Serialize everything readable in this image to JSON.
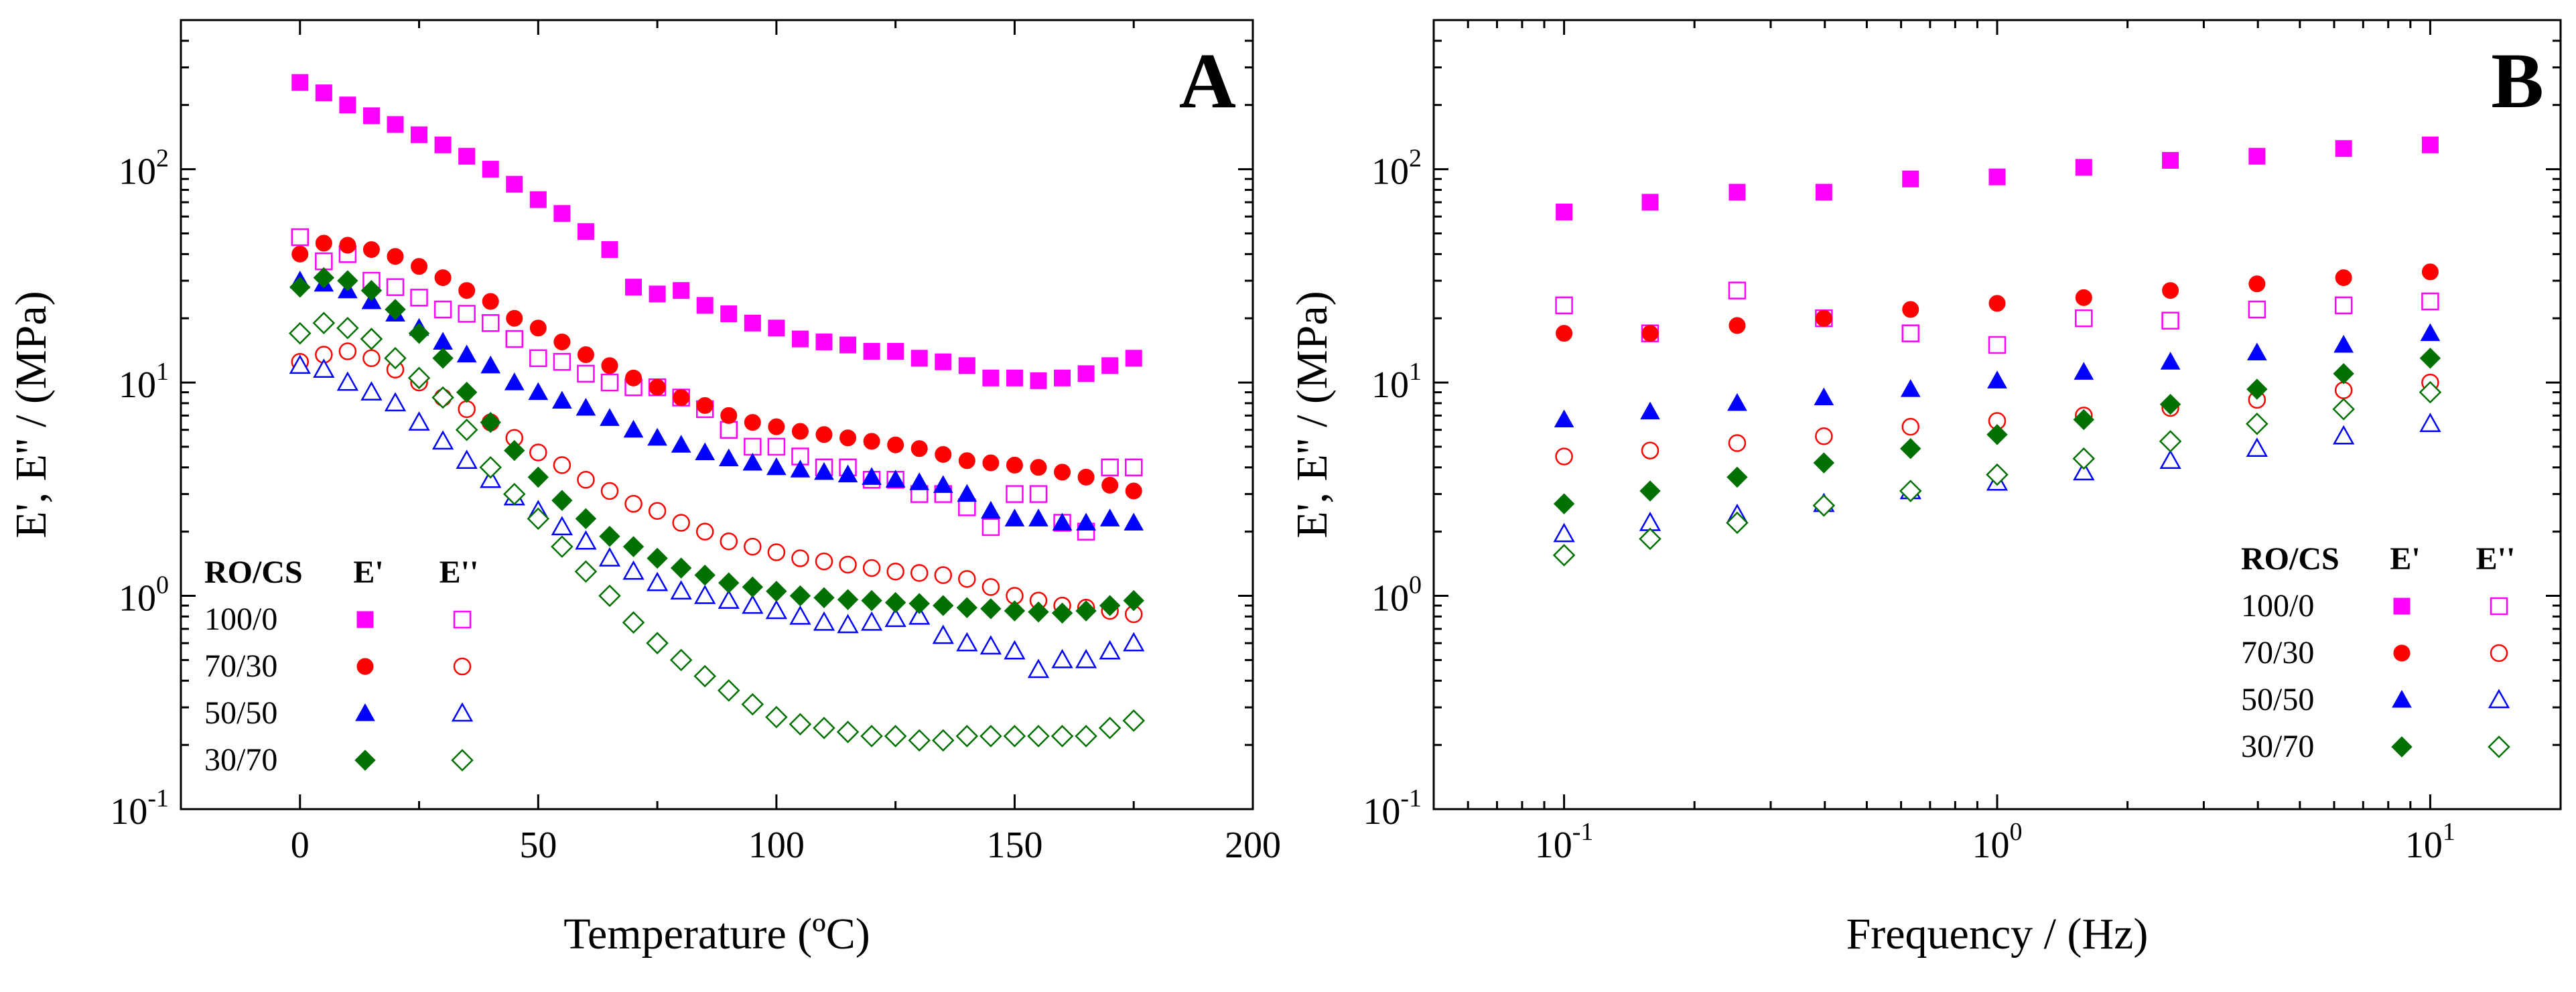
{
  "chart_data": [
    {
      "panel": "A",
      "type": "scatter",
      "xscale": "linear",
      "yscale": "log",
      "xlabel": "Temperature (ºC)",
      "ylabel": "E', E'' / (MPa)",
      "xlim": [
        -25,
        200
      ],
      "ylim": [
        0.1,
        500
      ],
      "xticks": [
        "0",
        "50",
        "100",
        "150",
        "200"
      ],
      "xtick_values": [
        0,
        50,
        100,
        150,
        200
      ],
      "ytick_values": [
        0.1,
        1,
        10,
        100
      ],
      "ytick_labels": [
        {
          "base": "10",
          "exp": "-1"
        },
        {
          "base": "10",
          "exp": "0"
        },
        {
          "base": "10",
          "exp": "1"
        },
        {
          "base": "10",
          "exp": "2"
        }
      ],
      "legend": {
        "position": "bottom-left",
        "header": "RO/CS",
        "col1": "E'",
        "col2": "E''",
        "rows": [
          "100/0",
          "70/30",
          "50/50",
          "30/70"
        ]
      },
      "series": [
        {
          "name": "100/0 E'",
          "color": "#ff00ff",
          "marker": "square",
          "filled": true,
          "x": [
            0,
            5,
            10,
            15,
            20,
            25,
            30,
            35,
            40,
            45,
            50,
            55,
            60,
            65,
            70,
            75,
            80,
            85,
            90,
            95,
            100,
            105,
            110,
            115,
            120,
            125,
            130,
            135,
            140,
            145,
            150,
            155,
            160,
            165,
            170,
            175
          ],
          "y": [
            255,
            228,
            200,
            178,
            162,
            145,
            130,
            115,
            100,
            85,
            72,
            62,
            51,
            42,
            28,
            26,
            27,
            23,
            21,
            19,
            18,
            16,
            15.5,
            15,
            14,
            14,
            13,
            12.5,
            12,
            10.5,
            10.5,
            10.2,
            10.5,
            11,
            12,
            13
          ]
        },
        {
          "name": "100/0 E''",
          "color": "#ff00ff",
          "marker": "square",
          "filled": false,
          "x": [
            0,
            5,
            10,
            15,
            20,
            25,
            30,
            35,
            40,
            45,
            50,
            55,
            60,
            65,
            70,
            75,
            80,
            85,
            90,
            95,
            100,
            105,
            110,
            115,
            120,
            125,
            130,
            135,
            140,
            145,
            150,
            155,
            160,
            165,
            170,
            175
          ],
          "y": [
            48,
            37,
            40,
            30,
            28,
            25,
            22,
            21,
            19,
            16,
            13,
            12.5,
            11,
            10,
            9.5,
            9.5,
            8.5,
            7.5,
            6,
            5,
            5,
            4.5,
            4,
            4,
            3.5,
            3.5,
            3,
            3,
            2.6,
            2.1,
            3,
            3,
            2.2,
            2,
            4,
            4
          ]
        },
        {
          "name": "70/30 E'",
          "color": "#ff0000",
          "marker": "circle",
          "filled": true,
          "x": [
            0,
            5,
            10,
            15,
            20,
            25,
            30,
            35,
            40,
            45,
            50,
            55,
            60,
            65,
            70,
            75,
            80,
            85,
            90,
            95,
            100,
            105,
            110,
            115,
            120,
            125,
            130,
            135,
            140,
            145,
            150,
            155,
            160,
            165,
            170,
            175
          ],
          "y": [
            40,
            45,
            44,
            42,
            39,
            35,
            31,
            27,
            24,
            20,
            18,
            15.5,
            13.5,
            12,
            10.5,
            9.5,
            8.5,
            7.8,
            7,
            6.5,
            6.2,
            5.9,
            5.7,
            5.5,
            5.3,
            5.1,
            4.9,
            4.6,
            4.3,
            4.2,
            4.1,
            4,
            3.8,
            3.6,
            3.3,
            3.1
          ]
        },
        {
          "name": "70/30 E''",
          "color": "#ff0000",
          "marker": "circle",
          "filled": false,
          "x": [
            0,
            5,
            10,
            15,
            20,
            25,
            30,
            35,
            40,
            45,
            50,
            55,
            60,
            65,
            70,
            75,
            80,
            85,
            90,
            95,
            100,
            105,
            110,
            115,
            120,
            125,
            130,
            135,
            140,
            145,
            150,
            155,
            160,
            165,
            170,
            175
          ],
          "y": [
            12.5,
            13.5,
            14,
            13,
            11.5,
            10,
            8.5,
            7.5,
            6.5,
            5.5,
            4.7,
            4.1,
            3.5,
            3.1,
            2.7,
            2.5,
            2.2,
            2,
            1.8,
            1.7,
            1.6,
            1.5,
            1.45,
            1.4,
            1.35,
            1.3,
            1.28,
            1.25,
            1.2,
            1.1,
            1,
            0.95,
            0.9,
            0.88,
            0.85,
            0.82
          ]
        },
        {
          "name": "50/50 E'",
          "color": "#0000ff",
          "marker": "triangle",
          "filled": true,
          "x": [
            0,
            5,
            10,
            15,
            20,
            25,
            30,
            35,
            40,
            45,
            50,
            55,
            60,
            65,
            70,
            75,
            80,
            85,
            90,
            95,
            100,
            105,
            110,
            115,
            120,
            125,
            130,
            135,
            140,
            145,
            150,
            155,
            160,
            165,
            170,
            175
          ],
          "y": [
            30,
            29,
            27,
            24,
            21,
            18,
            15.5,
            13.5,
            12,
            10,
            9,
            8.2,
            7.6,
            6.8,
            6,
            5.5,
            5.1,
            4.7,
            4.4,
            4.2,
            4,
            3.9,
            3.8,
            3.7,
            3.6,
            3.5,
            3.4,
            3.3,
            3,
            2.5,
            2.3,
            2.3,
            2.2,
            2.2,
            2.3,
            2.2
          ]
        },
        {
          "name": "50/50 E''",
          "color": "#0000ff",
          "marker": "triangle",
          "filled": false,
          "x": [
            0,
            5,
            10,
            15,
            20,
            25,
            30,
            35,
            40,
            45,
            50,
            55,
            60,
            65,
            70,
            75,
            80,
            85,
            90,
            95,
            100,
            105,
            110,
            115,
            120,
            125,
            130,
            135,
            140,
            145,
            150,
            155,
            160,
            165,
            170,
            175
          ],
          "y": [
            12,
            11.5,
            10,
            9,
            8,
            6.5,
            5.3,
            4.3,
            3.5,
            2.9,
            2.5,
            2.1,
            1.8,
            1.5,
            1.3,
            1.15,
            1.05,
            1,
            0.95,
            0.9,
            0.85,
            0.8,
            0.75,
            0.73,
            0.75,
            0.78,
            0.8,
            0.65,
            0.6,
            0.58,
            0.55,
            0.45,
            0.5,
            0.5,
            0.55,
            0.6
          ]
        },
        {
          "name": "30/70 E'",
          "color": "#007000",
          "marker": "diamond",
          "filled": true,
          "x": [
            0,
            5,
            10,
            15,
            20,
            25,
            30,
            35,
            40,
            45,
            50,
            55,
            60,
            65,
            70,
            75,
            80,
            85,
            90,
            95,
            100,
            105,
            110,
            115,
            120,
            125,
            130,
            135,
            140,
            145,
            150,
            155,
            160,
            165,
            170,
            175
          ],
          "y": [
            28,
            31,
            30,
            27,
            22,
            17,
            13,
            9,
            6.5,
            4.8,
            3.6,
            2.8,
            2.3,
            1.9,
            1.7,
            1.5,
            1.35,
            1.25,
            1.15,
            1.1,
            1.05,
            1,
            0.98,
            0.96,
            0.95,
            0.93,
            0.92,
            0.9,
            0.88,
            0.87,
            0.85,
            0.84,
            0.83,
            0.85,
            0.9,
            0.95
          ]
        },
        {
          "name": "30/70 E''",
          "color": "#007000",
          "marker": "diamond",
          "filled": false,
          "x": [
            0,
            5,
            10,
            15,
            20,
            25,
            30,
            35,
            40,
            45,
            50,
            55,
            60,
            65,
            70,
            75,
            80,
            85,
            90,
            95,
            100,
            105,
            110,
            115,
            120,
            125,
            130,
            135,
            140,
            145,
            150,
            155,
            160,
            165,
            170,
            175
          ],
          "y": [
            17,
            19,
            18,
            16,
            13,
            10.5,
            8.5,
            6,
            4,
            3,
            2.3,
            1.7,
            1.3,
            1,
            0.75,
            0.6,
            0.5,
            0.42,
            0.36,
            0.31,
            0.27,
            0.25,
            0.24,
            0.23,
            0.22,
            0.22,
            0.21,
            0.21,
            0.22,
            0.22,
            0.22,
            0.22,
            0.22,
            0.22,
            0.24,
            0.26
          ]
        }
      ]
    },
    {
      "panel": "B",
      "type": "scatter",
      "xscale": "log",
      "yscale": "log",
      "xlabel": "Frequency / (Hz)",
      "ylabel": "E', E'' / (MPa)",
      "xlim": [
        0.05,
        20
      ],
      "ylim": [
        0.1,
        500
      ],
      "xtick_values": [
        0.1,
        1,
        10
      ],
      "xtick_labels": [
        {
          "base": "10",
          "exp": "-1"
        },
        {
          "base": "10",
          "exp": "0"
        },
        {
          "base": "10",
          "exp": "1"
        }
      ],
      "ytick_values": [
        0.1,
        1,
        10,
        100
      ],
      "ytick_labels": [
        {
          "base": "10",
          "exp": "-1"
        },
        {
          "base": "10",
          "exp": "0"
        },
        {
          "base": "10",
          "exp": "1"
        },
        {
          "base": "10",
          "exp": "2"
        }
      ],
      "legend": {
        "position": "bottom-right",
        "header": "RO/CS",
        "col1": "E'",
        "col2": "E''",
        "rows": [
          "100/0",
          "70/30",
          "50/50",
          "30/70"
        ]
      },
      "series": [
        {
          "name": "100/0 E'",
          "color": "#ff00ff",
          "marker": "square",
          "filled": true,
          "x": [
            0.1,
            0.158,
            0.251,
            0.398,
            0.631,
            1,
            1.585,
            2.512,
            3.981,
            6.31,
            10
          ],
          "y": [
            63,
            70,
            78,
            78,
            90,
            92,
            102,
            110,
            115,
            125,
            130
          ]
        },
        {
          "name": "100/0 E''",
          "color": "#ff00ff",
          "marker": "square",
          "filled": false,
          "x": [
            0.1,
            0.158,
            0.251,
            0.398,
            0.631,
            1,
            1.585,
            2.512,
            3.981,
            6.31,
            10
          ],
          "y": [
            23,
            17,
            27,
            20,
            17,
            15,
            20,
            19.5,
            22,
            23,
            24
          ]
        },
        {
          "name": "70/30 E'",
          "color": "#ff0000",
          "marker": "circle",
          "filled": true,
          "x": [
            0.1,
            0.158,
            0.251,
            0.398,
            0.631,
            1,
            1.585,
            2.512,
            3.981,
            6.31,
            10
          ],
          "y": [
            17,
            17,
            18.5,
            20,
            22,
            23.5,
            25,
            27,
            29,
            31,
            33
          ]
        },
        {
          "name": "70/30 E''",
          "color": "#ff0000",
          "marker": "circle",
          "filled": false,
          "x": [
            0.1,
            0.158,
            0.251,
            0.398,
            0.631,
            1,
            1.585,
            2.512,
            3.981,
            6.31,
            10
          ],
          "y": [
            4.5,
            4.8,
            5.2,
            5.6,
            6.2,
            6.6,
            7,
            7.6,
            8.3,
            9.2,
            10
          ]
        },
        {
          "name": "50/50 E'",
          "color": "#0000ff",
          "marker": "triangle",
          "filled": true,
          "x": [
            0.1,
            0.158,
            0.251,
            0.398,
            0.631,
            1,
            1.585,
            2.512,
            3.981,
            6.31,
            10
          ],
          "y": [
            6.7,
            7.3,
            8,
            8.5,
            9.3,
            10.2,
            11.2,
            12.5,
            13.8,
            15,
            17
          ]
        },
        {
          "name": "50/50 E''",
          "color": "#0000ff",
          "marker": "triangle",
          "filled": false,
          "x": [
            0.1,
            0.158,
            0.251,
            0.398,
            0.631,
            1,
            1.585,
            2.512,
            3.981,
            6.31,
            10
          ],
          "y": [
            1.95,
            2.2,
            2.4,
            2.7,
            3.1,
            3.4,
            3.8,
            4.3,
            4.9,
            5.6,
            6.4
          ]
        },
        {
          "name": "30/70 E'",
          "color": "#007000",
          "marker": "diamond",
          "filled": true,
          "x": [
            0.1,
            0.158,
            0.251,
            0.398,
            0.631,
            1,
            1.585,
            2.512,
            3.981,
            6.31,
            10
          ],
          "y": [
            2.7,
            3.1,
            3.6,
            4.2,
            4.9,
            5.7,
            6.7,
            7.9,
            9.3,
            11,
            13
          ]
        },
        {
          "name": "30/70 E''",
          "color": "#007000",
          "marker": "diamond",
          "filled": false,
          "x": [
            0.1,
            0.158,
            0.251,
            0.398,
            0.631,
            1,
            1.585,
            2.512,
            3.981,
            6.31,
            10
          ],
          "y": [
            1.55,
            1.85,
            2.2,
            2.65,
            3.1,
            3.7,
            4.4,
            5.3,
            6.4,
            7.5,
            9
          ]
        }
      ]
    }
  ]
}
